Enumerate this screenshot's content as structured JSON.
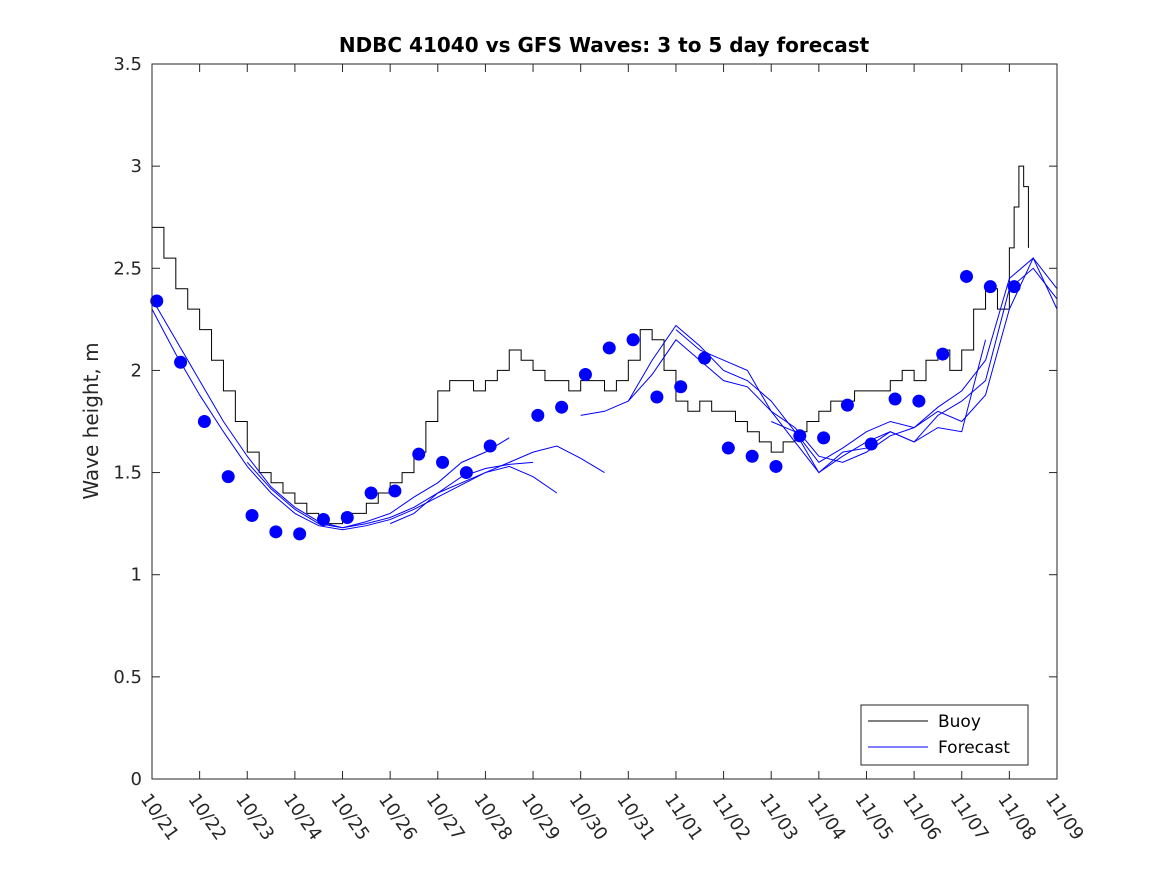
{
  "chart_data": {
    "type": "line",
    "title": "NDBC 41040 vs GFS Waves: 3 to 5 day forecast",
    "xlabel": "",
    "ylabel": "Wave height, m",
    "ylim": [
      0,
      3.5
    ],
    "yticks": [
      0,
      0.5,
      1,
      1.5,
      2,
      2.5,
      3,
      3.5
    ],
    "ytick_labels": [
      "0",
      "0.5",
      "1",
      "1.5",
      "2",
      "2.5",
      "3",
      "3.5"
    ],
    "xlim": [
      0,
      19
    ],
    "xtick_labels": [
      "10/21",
      "10/22",
      "10/23",
      "10/24",
      "10/25",
      "10/26",
      "10/27",
      "10/28",
      "10/29",
      "10/30",
      "10/31",
      "11/01",
      "11/02",
      "11/03",
      "11/04",
      "11/05",
      "11/06",
      "11/07",
      "11/08",
      "11/09"
    ],
    "legend": {
      "position": "bottom-right",
      "entries": [
        "Buoy",
        "Forecast"
      ]
    },
    "colors": {
      "buoy": "#000000",
      "forecast": "#0000ff",
      "marker": "#0000ff"
    },
    "series": [
      {
        "name": "Buoy",
        "x": [
          0.0,
          0.25,
          0.5,
          0.75,
          1.0,
          1.25,
          1.5,
          1.75,
          2.0,
          2.25,
          2.5,
          2.75,
          3.0,
          3.25,
          3.5,
          3.75,
          4.0,
          4.25,
          4.5,
          4.75,
          5.0,
          5.25,
          5.5,
          5.75,
          6.0,
          6.25,
          6.5,
          6.75,
          7.0,
          7.25,
          7.5,
          7.75,
          8.0,
          8.25,
          8.5,
          8.75,
          9.0,
          9.25,
          9.5,
          9.75,
          10.0,
          10.25,
          10.5,
          10.75,
          11.0,
          11.25,
          11.5,
          11.75,
          12.0,
          12.25,
          12.5,
          12.75,
          13.0,
          13.25,
          13.5,
          13.75,
          14.0,
          14.25,
          14.5,
          14.75,
          15.0,
          15.25,
          15.5,
          15.75,
          16.0,
          16.25,
          16.5,
          16.75,
          17.0,
          17.25,
          17.5,
          17.75,
          18.0,
          18.1,
          18.2,
          18.3,
          18.4
        ],
        "values": [
          2.7,
          2.55,
          2.4,
          2.3,
          2.2,
          2.05,
          1.9,
          1.75,
          1.6,
          1.5,
          1.45,
          1.4,
          1.35,
          1.3,
          1.25,
          1.25,
          1.3,
          1.3,
          1.35,
          1.4,
          1.45,
          1.5,
          1.6,
          1.75,
          1.9,
          1.95,
          1.95,
          1.9,
          1.95,
          2.0,
          2.1,
          2.05,
          2.0,
          1.95,
          1.95,
          1.9,
          1.95,
          1.95,
          1.9,
          1.95,
          2.05,
          2.2,
          2.15,
          2.0,
          1.85,
          1.8,
          1.85,
          1.8,
          1.8,
          1.75,
          1.7,
          1.65,
          1.6,
          1.65,
          1.7,
          1.75,
          1.8,
          1.85,
          1.85,
          1.9,
          1.9,
          1.9,
          1.95,
          2.0,
          1.95,
          2.05,
          2.1,
          2.0,
          2.1,
          2.3,
          2.4,
          2.3,
          2.6,
          2.8,
          3.0,
          2.9,
          2.6
        ]
      },
      {
        "name": "Forecast",
        "lines": [
          {
            "x": [
              0.0,
              0.5,
              1.0,
              1.5,
              2.0,
              2.5,
              3.0,
              3.5,
              4.0,
              4.5,
              5.0,
              5.5,
              6.0,
              6.5,
              7.0,
              7.5,
              8.0,
              8.5,
              9.0,
              9.5
            ],
            "values": [
              2.35,
              2.15,
              1.95,
              1.75,
              1.58,
              1.43,
              1.33,
              1.26,
              1.23,
              1.25,
              1.28,
              1.33,
              1.4,
              1.45,
              1.5,
              1.55,
              1.6,
              1.63,
              1.57,
              1.5
            ]
          },
          {
            "x": [
              0.0,
              0.5,
              1.0,
              1.5,
              2.0,
              2.5,
              3.0,
              3.5,
              4.0,
              4.5,
              5.0,
              5.5,
              6.0,
              6.5,
              7.0,
              7.5,
              8.0,
              8.5
            ],
            "values": [
              2.3,
              2.08,
              1.88,
              1.7,
              1.53,
              1.4,
              1.3,
              1.24,
              1.22,
              1.24,
              1.27,
              1.32,
              1.38,
              1.44,
              1.5,
              1.53,
              1.48,
              1.4
            ]
          },
          {
            "x": [
              2.0,
              2.5,
              3.0,
              3.5,
              4.0,
              4.5,
              5.0,
              5.5,
              6.0,
              6.5,
              7.0,
              7.5
            ],
            "values": [
              1.55,
              1.42,
              1.32,
              1.25,
              1.23,
              1.26,
              1.3,
              1.38,
              1.45,
              1.55,
              1.6,
              1.67
            ]
          },
          {
            "x": [
              5.0,
              5.5,
              6.0,
              6.5,
              7.0,
              7.5,
              8.0
            ],
            "values": [
              1.25,
              1.3,
              1.4,
              1.48,
              1.52,
              1.54,
              1.55
            ]
          },
          {
            "x": [
              9.0,
              9.5,
              10.0,
              10.5,
              11.0,
              11.5,
              12.0,
              12.5,
              13.0,
              13.5,
              14.0,
              14.5,
              15.0,
              15.5,
              16.0,
              16.5,
              17.0,
              17.5,
              18.0,
              18.5,
              19.0
            ],
            "values": [
              1.78,
              1.8,
              1.85,
              1.98,
              2.15,
              2.05,
              1.95,
              1.92,
              1.8,
              1.65,
              1.5,
              1.58,
              1.65,
              1.7,
              1.65,
              1.78,
              1.85,
              1.95,
              2.4,
              2.5,
              2.35
            ]
          },
          {
            "x": [
              10.0,
              10.5,
              11.0,
              11.5,
              12.0,
              12.5,
              13.0,
              13.5,
              14.0,
              14.5,
              15.0,
              15.5,
              16.0,
              16.5,
              17.0,
              17.5,
              18.0,
              18.5,
              19.0
            ],
            "values": [
              1.85,
              2.05,
              2.22,
              2.12,
              2.0,
              1.95,
              1.85,
              1.7,
              1.55,
              1.62,
              1.7,
              1.75,
              1.72,
              1.82,
              1.9,
              2.05,
              2.45,
              2.55,
              2.4
            ]
          },
          {
            "x": [
              11.0,
              11.5,
              12.0,
              12.5,
              13.0,
              13.5,
              14.0,
              14.5,
              15.0,
              15.5,
              16.0,
              16.5,
              17.0,
              17.5,
              18.0,
              18.5,
              19.0
            ],
            "values": [
              2.2,
              2.1,
              2.05,
              2.0,
              1.8,
              1.72,
              1.58,
              1.55,
              1.6,
              1.68,
              1.72,
              1.8,
              1.75,
              1.88,
              2.3,
              2.55,
              2.3
            ]
          },
          {
            "x": [
              13.0,
              13.5,
              14.0,
              14.5,
              15.0,
              15.5,
              16.0,
              16.5,
              17.0,
              17.5
            ],
            "values": [
              1.75,
              1.7,
              1.5,
              1.6,
              1.62,
              1.7,
              1.65,
              1.72,
              1.7,
              2.15
            ]
          }
        ]
      },
      {
        "name": "Forecast markers",
        "x": [
          0.1,
          0.6,
          1.1,
          1.6,
          2.1,
          2.6,
          3.1,
          3.6,
          4.1,
          4.6,
          5.1,
          5.6,
          6.1,
          6.6,
          7.1,
          8.1,
          8.6,
          9.1,
          9.6,
          10.1,
          10.6,
          11.1,
          11.6,
          12.1,
          12.6,
          13.1,
          13.6,
          14.1,
          14.6,
          15.1,
          15.6,
          16.1,
          16.6,
          17.1,
          17.6,
          18.1
        ],
        "values": [
          2.34,
          2.04,
          1.75,
          1.48,
          1.29,
          1.21,
          1.2,
          1.27,
          1.28,
          1.4,
          1.41,
          1.59,
          1.55,
          1.5,
          1.63,
          1.78,
          1.82,
          1.98,
          2.11,
          2.15,
          1.87,
          1.92,
          2.06,
          1.62,
          1.58,
          1.53,
          1.68,
          1.67,
          1.83,
          1.64,
          1.86,
          1.85,
          2.08,
          2.46,
          2.41,
          2.41
        ]
      }
    ]
  }
}
